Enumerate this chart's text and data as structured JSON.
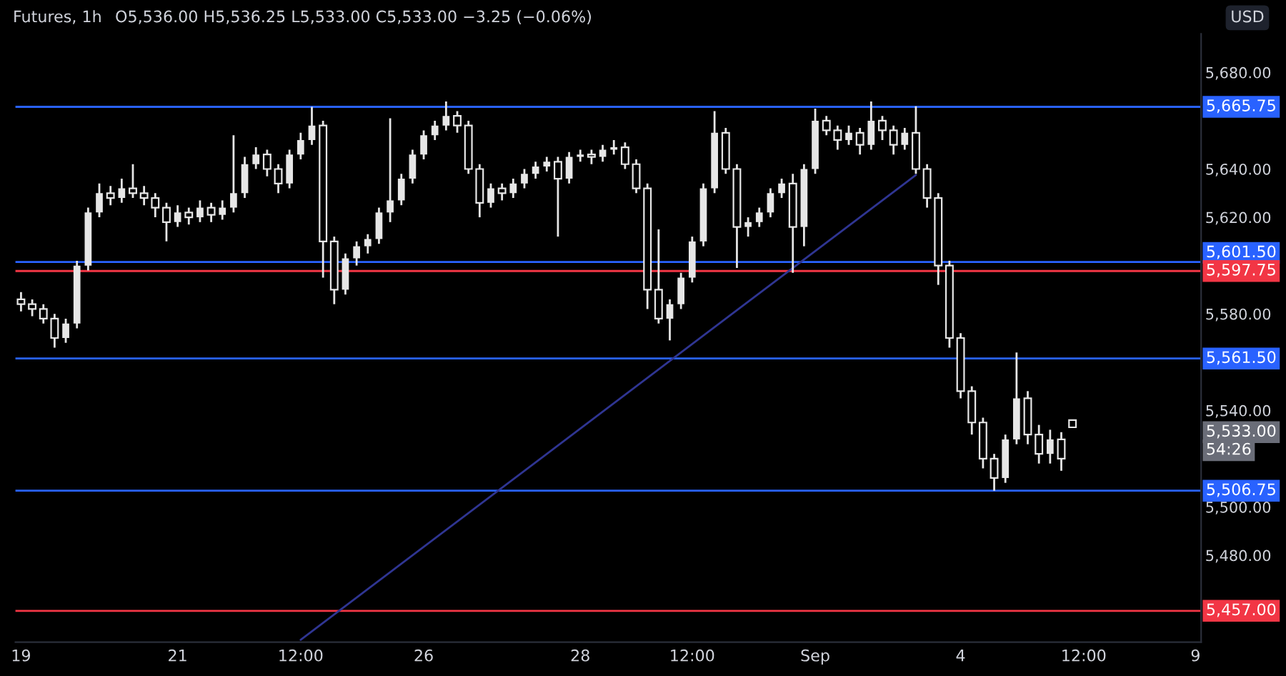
{
  "chart_data": {
    "type": "candlestick",
    "title": "Futures, 1h",
    "annotations": [
      "O5,536.00 H5,536.25 L5,533.00 C5,533.00 −3.25 (−0.06%)",
      "USD",
      "5,533.00",
      "54:26"
    ],
    "categories": [
      "19",
      null,
      null,
      null,
      null,
      null,
      null,
      null,
      null,
      null,
      null,
      null,
      null,
      null,
      "21",
      null,
      null,
      null,
      null,
      null,
      null,
      null,
      null,
      null,
      null,
      "12:00",
      null,
      null,
      null,
      null,
      null,
      null,
      null,
      null,
      null,
      null,
      "26",
      null,
      null,
      null,
      null,
      null,
      null,
      null,
      null,
      null,
      null,
      null,
      null,
      null,
      "28",
      null,
      null,
      null,
      null,
      null,
      null,
      null,
      null,
      null,
      "12:00",
      null,
      null,
      null,
      null,
      null,
      null,
      null,
      null,
      null,
      null,
      "Sep",
      null,
      null,
      null,
      null,
      null,
      null,
      null,
      null,
      null,
      null,
      null,
      null,
      "4",
      null,
      null,
      null,
      null,
      null,
      null,
      null,
      null,
      null,
      null,
      "12:00",
      null,
      null,
      null,
      null,
      null,
      null,
      null,
      null,
      null,
      "9"
    ],
    "ylim": [
      5444,
      5696
    ],
    "yticks": [
      {
        "value": 5480,
        "label": "5,480.00"
      },
      {
        "value": 5500,
        "label": "5,500.00"
      },
      {
        "value": 5540,
        "label": "5,540.00"
      },
      {
        "value": 5580,
        "label": "5,580.00"
      },
      {
        "value": 5620,
        "label": "5,620.00"
      },
      {
        "value": 5640,
        "label": "5,640.00"
      },
      {
        "value": 5680,
        "label": "5,680.00"
      }
    ],
    "grid": false,
    "ref_lines": [
      {
        "axis": "y",
        "value": 5665.75,
        "label": "5,665.75",
        "color": "#2962ff"
      },
      {
        "axis": "y",
        "value": 5601.5,
        "label": "5,601.50",
        "color": "#2962ff"
      },
      {
        "axis": "y",
        "value": 5597.75,
        "label": "5,597.75",
        "color": "#f23645"
      },
      {
        "axis": "y",
        "value": 5561.5,
        "label": "5,561.50",
        "color": "#2962ff"
      },
      {
        "axis": "y",
        "value": 5506.75,
        "label": "5,506.75",
        "color": "#2962ff"
      },
      {
        "axis": "y",
        "value": 5457,
        "label": "5,457.00",
        "color": "#f23645"
      }
    ],
    "series": [
      {
        "color": "#e6e6e6",
        "ohlc": [
          [
            5586,
            5589,
            5581,
            5584
          ],
          [
            5584,
            5586,
            5579,
            5582
          ],
          [
            5582,
            5584,
            5576,
            5578
          ],
          [
            5578,
            5580,
            5566,
            5570
          ],
          [
            5570,
            5578,
            5568,
            5576
          ],
          [
            5576,
            5602,
            5574,
            5600
          ],
          [
            5600,
            5624,
            5598,
            5622
          ],
          [
            5622,
            5634,
            5620,
            5630
          ],
          [
            5630,
            5633,
            5625,
            5628
          ],
          [
            5628,
            5636,
            5626,
            5632
          ],
          [
            5632,
            5642,
            5628,
            5630
          ],
          [
            5630,
            5633,
            5625,
            5628
          ],
          [
            5628,
            5630,
            5620,
            5624
          ],
          [
            5624,
            5626,
            5610,
            5618
          ],
          [
            5618,
            5625,
            5616,
            5622
          ],
          [
            5622,
            5624,
            5617,
            5620
          ],
          [
            5620,
            5627,
            5618,
            5624
          ],
          [
            5624,
            5626,
            5618,
            5621
          ],
          [
            5621,
            5627,
            5619,
            5624
          ],
          [
            5624,
            5654,
            5622,
            5630
          ],
          [
            5630,
            5645,
            5628,
            5642
          ],
          [
            5642,
            5649,
            5640,
            5646
          ],
          [
            5646,
            5648,
            5637,
            5640
          ],
          [
            5640,
            5642,
            5630,
            5634
          ],
          [
            5634,
            5648,
            5632,
            5646
          ],
          [
            5646,
            5655,
            5644,
            5652
          ],
          [
            5652,
            5665.75,
            5650,
            5658
          ],
          [
            5658,
            5660,
            5595,
            5610
          ],
          [
            5610,
            5612,
            5584,
            5590
          ],
          [
            5590,
            5605,
            5588,
            5603
          ],
          [
            5603,
            5610,
            5600,
            5608
          ],
          [
            5608,
            5613,
            5605,
            5611
          ],
          [
            5611,
            5624,
            5609,
            5622
          ],
          [
            5622,
            5661,
            5618,
            5627
          ],
          [
            5627,
            5638,
            5625,
            5636
          ],
          [
            5636,
            5648,
            5634,
            5646
          ],
          [
            5646,
            5656,
            5644,
            5654
          ],
          [
            5654,
            5660,
            5652,
            5658
          ],
          [
            5658,
            5668,
            5656,
            5662
          ],
          [
            5662,
            5664,
            5655,
            5658
          ],
          [
            5658,
            5660,
            5638,
            5640
          ],
          [
            5640,
            5642,
            5620,
            5626
          ],
          [
            5626,
            5634,
            5624,
            5632
          ],
          [
            5632,
            5634,
            5627,
            5630
          ],
          [
            5630,
            5636,
            5628,
            5634
          ],
          [
            5634,
            5640,
            5632,
            5638
          ],
          [
            5638,
            5643,
            5636,
            5641
          ],
          [
            5641,
            5645,
            5639,
            5643
          ],
          [
            5643,
            5645,
            5612,
            5636
          ],
          [
            5636,
            5647,
            5634,
            5645
          ],
          [
            5645,
            5648,
            5643,
            5646
          ],
          [
            5646,
            5648,
            5642,
            5645
          ],
          [
            5645,
            5650,
            5643,
            5648
          ],
          [
            5648,
            5652,
            5646,
            5649
          ],
          [
            5649,
            5651,
            5640,
            5642
          ],
          [
            5642,
            5644,
            5630,
            5632
          ],
          [
            5632,
            5634,
            5582,
            5590
          ],
          [
            5590,
            5615,
            5576,
            5578
          ],
          [
            5578,
            5586,
            5569,
            5584
          ],
          [
            5584,
            5597,
            5582,
            5595
          ],
          [
            5595,
            5612,
            5593,
            5610
          ],
          [
            5610,
            5634,
            5608,
            5632
          ],
          [
            5632,
            5664,
            5630,
            5655
          ],
          [
            5655,
            5657,
            5638,
            5640
          ],
          [
            5640,
            5642,
            5599,
            5616
          ],
          [
            5616,
            5620,
            5612,
            5618
          ],
          [
            5618,
            5624,
            5616,
            5622
          ],
          [
            5622,
            5632,
            5620,
            5630
          ],
          [
            5630,
            5636,
            5628,
            5634
          ],
          [
            5634,
            5638,
            5597,
            5616
          ],
          [
            5616,
            5642,
            5608,
            5640
          ],
          [
            5640,
            5665,
            5638,
            5660
          ],
          [
            5660,
            5662,
            5654,
            5656
          ],
          [
            5656,
            5658,
            5648,
            5652
          ],
          [
            5652,
            5658,
            5650,
            5655
          ],
          [
            5655,
            5657,
            5646,
            5650
          ],
          [
            5650,
            5668,
            5648,
            5660
          ],
          [
            5660,
            5662,
            5652,
            5656
          ],
          [
            5656,
            5658,
            5646,
            5650
          ],
          [
            5650,
            5657,
            5648,
            5655
          ],
          [
            5655,
            5666,
            5638,
            5640
          ],
          [
            5640,
            5642,
            5624,
            5628
          ],
          [
            5628,
            5630,
            5592,
            5600
          ],
          [
            5600,
            5602,
            5566,
            5570
          ],
          [
            5570,
            5572,
            5545,
            5548
          ],
          [
            5548,
            5550,
            5530,
            5535
          ],
          [
            5535,
            5537,
            5516,
            5520
          ],
          [
            5520,
            5522,
            5506.75,
            5512
          ],
          [
            5512,
            5530,
            5510,
            5528
          ],
          [
            5528,
            5564,
            5526,
            5545
          ],
          [
            5545,
            5548,
            5526,
            5530
          ],
          [
            5530,
            5534,
            5518,
            5522
          ],
          [
            5522,
            5532,
            5518,
            5528
          ],
          [
            5528,
            5531,
            5515,
            5520
          ],
          [
            5536,
            5536.25,
            5533,
            5533
          ],
          null,
          null,
          null,
          null,
          null,
          null,
          null,
          null,
          null,
          null,
          null
        ]
      },
      {
        "type": "line",
        "color": "#2f3592",
        "values": [
          null,
          null,
          null,
          null,
          null,
          null,
          null,
          null,
          null,
          null,
          null,
          null,
          null,
          null,
          null,
          null,
          null,
          null,
          null,
          null,
          null,
          null,
          null,
          null,
          null,
          5445,
          null,
          null,
          null,
          null,
          null,
          null,
          null,
          null,
          null,
          null,
          null,
          null,
          null,
          null,
          null,
          null,
          null,
          null,
          null,
          null,
          null,
          null,
          null,
          null,
          null,
          null,
          null,
          null,
          null,
          null,
          null,
          null,
          null,
          null,
          null,
          null,
          null,
          null,
          null,
          null,
          null,
          null,
          null,
          null,
          null,
          null,
          null,
          null,
          null,
          null,
          null,
          null,
          null,
          null,
          5637.5,
          null,
          null,
          null,
          null,
          null,
          null,
          null,
          null,
          null,
          null,
          null,
          null,
          null,
          null,
          null,
          null,
          null,
          null,
          null,
          null,
          null,
          null,
          null,
          null,
          null
        ]
      }
    ]
  }
}
